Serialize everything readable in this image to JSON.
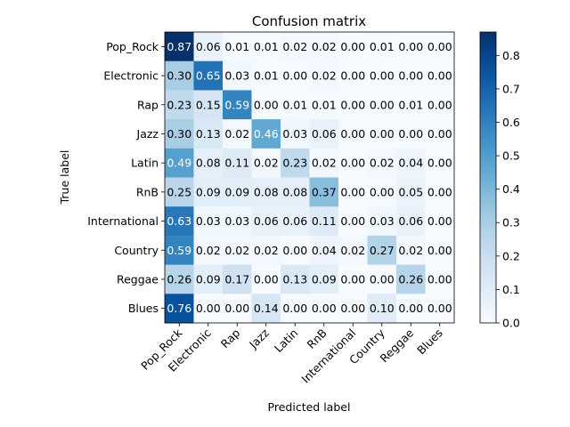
{
  "chart_data": {
    "type": "heatmap",
    "title": "Confusion matrix",
    "xlabel": "Predicted label",
    "ylabel": "True label",
    "x_categories": [
      "Pop_Rock",
      "Electronic",
      "Rap",
      "Jazz",
      "Latin",
      "RnB",
      "International",
      "Country",
      "Reggae",
      "Blues"
    ],
    "y_categories": [
      "Pop_Rock",
      "Electronic",
      "Rap",
      "Jazz",
      "Latin",
      "RnB",
      "International",
      "Country",
      "Reggae",
      "Blues"
    ],
    "values": [
      [
        0.87,
        0.06,
        0.01,
        0.01,
        0.02,
        0.02,
        0.0,
        0.01,
        0.0,
        0.0
      ],
      [
        0.3,
        0.65,
        0.03,
        0.01,
        0.0,
        0.02,
        0.0,
        0.0,
        0.0,
        0.0
      ],
      [
        0.23,
        0.15,
        0.59,
        0.0,
        0.01,
        0.01,
        0.0,
        0.0,
        0.01,
        0.0
      ],
      [
        0.3,
        0.13,
        0.02,
        0.46,
        0.03,
        0.06,
        0.0,
        0.0,
        0.0,
        0.0
      ],
      [
        0.49,
        0.08,
        0.11,
        0.02,
        0.23,
        0.02,
        0.0,
        0.02,
        0.04,
        0.0
      ],
      [
        0.25,
        0.09,
        0.09,
        0.08,
        0.08,
        0.37,
        0.0,
        0.0,
        0.05,
        0.0
      ],
      [
        0.63,
        0.03,
        0.03,
        0.06,
        0.06,
        0.11,
        0.0,
        0.03,
        0.06,
        0.0
      ],
      [
        0.59,
        0.02,
        0.02,
        0.02,
        0.0,
        0.04,
        0.02,
        0.27,
        0.02,
        0.0
      ],
      [
        0.26,
        0.09,
        0.17,
        0.0,
        0.13,
        0.09,
        0.0,
        0.0,
        0.26,
        0.0
      ],
      [
        0.76,
        0.0,
        0.0,
        0.14,
        0.0,
        0.0,
        0.0,
        0.1,
        0.0,
        0.0
      ]
    ],
    "value_format": "0.00",
    "colormap": "Blues",
    "color_range": [
      0.0,
      0.87
    ],
    "colorbar": {
      "ticks": [
        "0.0",
        "0.1",
        "0.2",
        "0.3",
        "0.4",
        "0.5",
        "0.6",
        "0.7",
        "0.8"
      ],
      "tick_values": [
        0.0,
        0.1,
        0.2,
        0.3,
        0.4,
        0.5,
        0.6,
        0.7,
        0.8
      ]
    },
    "x_tick_rotation_deg": 45,
    "text_color_light": "#ffffff",
    "text_color_dark": "#000000",
    "legend": "none",
    "grid": false
  }
}
